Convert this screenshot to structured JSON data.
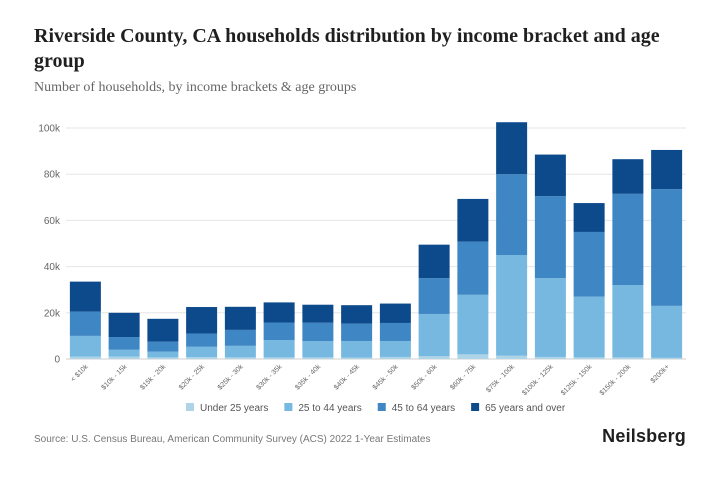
{
  "header": {
    "title": "Riverside County, CA households distribution by income bracket and age group",
    "subtitle": "Number of households, by income brackets & age groups"
  },
  "footer": {
    "source": "Source: U.S. Census Bureau, American Community Survey (ACS) 2022 1-Year Estimates",
    "brand": "Neilsberg"
  },
  "chart_data": {
    "type": "bar",
    "stacked": true,
    "title": "Riverside County, CA households distribution by income bracket and age group",
    "subtitle": "Number of households, by income brackets & age groups",
    "categories": [
      "< $10k",
      "$10k - 15k",
      "$15k - 20k",
      "$20k - 25k",
      "$25k - 30k",
      "$30k - 35k",
      "$35k - 40k",
      "$40k - 45k",
      "$45k - 50k",
      "$50k - 60k",
      "$60k - 75k",
      "$75k - 100k",
      "$100k - 125k",
      "$125k - 150k",
      "$150k - 200k",
      "$200k+"
    ],
    "series": [
      {
        "name": "Under 25 years",
        "color": "#aed4e8",
        "values": [
          1000,
          1000,
          700,
          800,
          700,
          700,
          700,
          600,
          900,
          1200,
          2000,
          1400,
          900,
          700,
          700,
          500
        ]
      },
      {
        "name": "25 to 44 years",
        "color": "#76b8e0",
        "values": [
          9000,
          3000,
          2500,
          4500,
          5000,
          7500,
          7000,
          7200,
          6900,
          18300,
          25800,
          43600,
          34100,
          26300,
          31300,
          22500
        ]
      },
      {
        "name": "45 to 64 years",
        "color": "#3f86c4",
        "values": [
          10500,
          5500,
          4300,
          5700,
          6900,
          7600,
          8000,
          7500,
          7800,
          15500,
          23000,
          35000,
          35500,
          28000,
          39500,
          50500
        ]
      },
      {
        "name": "65 years and over",
        "color": "#0d4a8c",
        "values": [
          13000,
          10500,
          9900,
          11500,
          10000,
          8700,
          7800,
          8000,
          8400,
          14500,
          18500,
          22500,
          18000,
          12500,
          15000,
          17000
        ]
      }
    ],
    "ylim": [
      0,
      100000
    ],
    "yticks": [
      0,
      20000,
      40000,
      60000,
      80000,
      100000
    ],
    "ytick_labels": [
      "0",
      "20k",
      "40k",
      "60k",
      "80k",
      "100k"
    ],
    "grid": true,
    "legend": "bottom"
  }
}
